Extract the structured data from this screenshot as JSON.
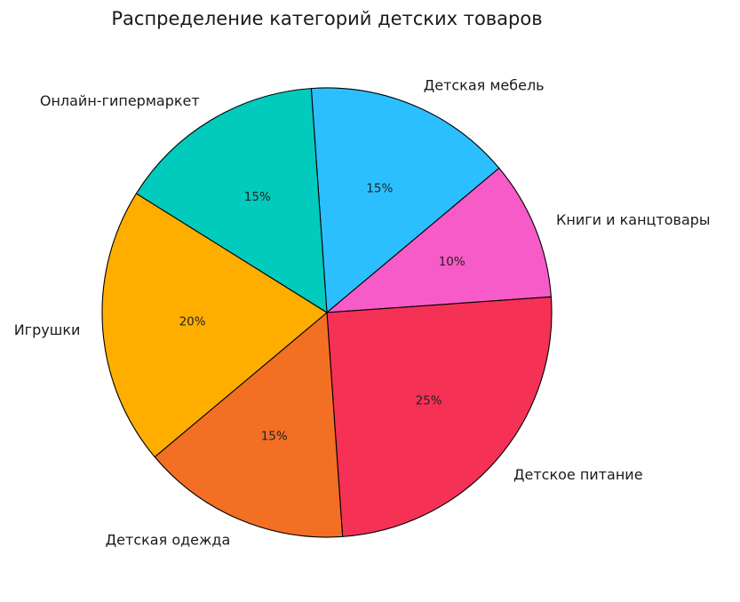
{
  "chart_data": {
    "type": "pie",
    "title": "Распределение категорий детских товаров",
    "start_angle_deg": 94,
    "direction": "clockwise",
    "slices": [
      {
        "label": "Детская мебель",
        "value": 15,
        "pct_label": "15%",
        "color": "#2bbfff"
      },
      {
        "label": "Книги и канцтовары",
        "value": 10,
        "pct_label": "10%",
        "color": "#f75bc7"
      },
      {
        "label": "Детское питание",
        "value": 25,
        "pct_label": "25%",
        "color": "#f53155"
      },
      {
        "label": "Детская одежда",
        "value": 15,
        "pct_label": "15%",
        "color": "#f36f24"
      },
      {
        "label": "Игрушки",
        "value": 20,
        "pct_label": "20%",
        "color": "#ffae00"
      },
      {
        "label": "Онлайн-гипермаркет",
        "value": 15,
        "pct_label": "15%",
        "color": "#00cbbd"
      }
    ]
  }
}
